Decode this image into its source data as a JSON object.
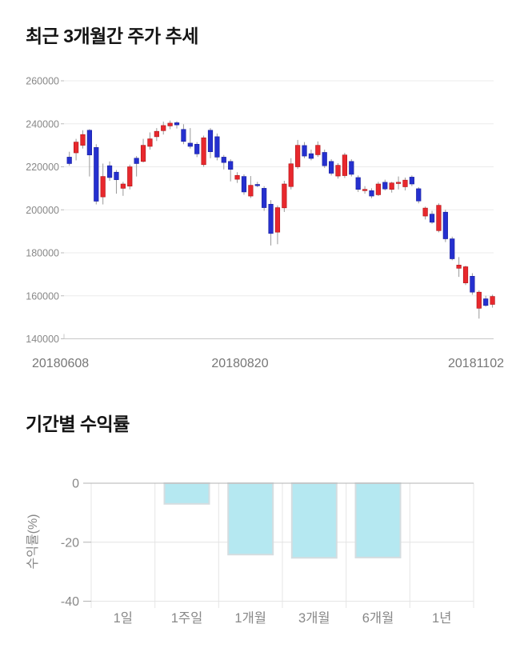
{
  "chart_data": [
    {
      "type": "candlestick",
      "title": "최근 3개월간 주가 추세",
      "x_tick_labels": [
        "20180608",
        "20180820",
        "20181102"
      ],
      "y_ticks": [
        260000,
        240000,
        220000,
        200000,
        180000,
        160000,
        140000
      ],
      "ylim": [
        140000,
        260000
      ],
      "grid": true,
      "legend": "none",
      "up_color": "#e8282d",
      "down_color": "#2530cf",
      "wick_color": "#999999",
      "grid_color": "#ebebeb",
      "axis_color": "#c8c8c8",
      "tick_label_color": "#888888",
      "candles_ohlc": [
        [
          224500,
          227000,
          220500,
          221500
        ],
        [
          226500,
          233000,
          223000,
          231500
        ],
        [
          230000,
          237000,
          228500,
          235000
        ],
        [
          237000,
          237500,
          215500,
          225500
        ],
        [
          229000,
          230500,
          202500,
          204000
        ],
        [
          206000,
          221500,
          202500,
          215500
        ],
        [
          220500,
          222500,
          213500,
          215000
        ],
        [
          217500,
          218500,
          207500,
          214000
        ],
        [
          210000,
          213000,
          206500,
          212000
        ],
        [
          211000,
          221000,
          209500,
          220000
        ],
        [
          224000,
          225000,
          215500,
          221500
        ],
        [
          222500,
          233000,
          222000,
          230000
        ],
        [
          229500,
          236000,
          228000,
          233000
        ],
        [
          234000,
          238000,
          232000,
          236500
        ],
        [
          236800,
          241000,
          235000,
          239200
        ],
        [
          239000,
          241500,
          237500,
          240300
        ],
        [
          240500,
          241200,
          237800,
          239500
        ],
        [
          237400,
          239800,
          230500,
          231800
        ],
        [
          231000,
          238000,
          228500,
          229500
        ],
        [
          230500,
          231500,
          224500,
          226000
        ],
        [
          221000,
          234500,
          220000,
          233500
        ],
        [
          237000,
          238000,
          224000,
          227000
        ],
        [
          234000,
          235500,
          223000,
          224500
        ],
        [
          224500,
          225500,
          218800,
          222000
        ],
        [
          222500,
          223500,
          213200,
          218800
        ],
        [
          214200,
          217500,
          212500,
          216000
        ],
        [
          215500,
          216500,
          207000,
          208300
        ],
        [
          206400,
          215700,
          205500,
          211400
        ],
        [
          211800,
          213000,
          210500,
          211200
        ],
        [
          210000,
          211000,
          199500,
          201000
        ],
        [
          202600,
          204500,
          183400,
          189000
        ],
        [
          189600,
          202000,
          184000,
          201000
        ],
        [
          200900,
          213500,
          199000,
          212000
        ],
        [
          210800,
          224000,
          209500,
          221400
        ],
        [
          220000,
          232500,
          219000,
          230000
        ],
        [
          229900,
          231500,
          224000,
          225000
        ],
        [
          226100,
          228000,
          223000,
          223900
        ],
        [
          225600,
          231800,
          224600,
          230000
        ],
        [
          226700,
          228000,
          219500,
          220500
        ],
        [
          222500,
          223500,
          216000,
          217000
        ],
        [
          215700,
          221700,
          214500,
          220700
        ],
        [
          215900,
          226500,
          214800,
          225500
        ],
        [
          222500,
          223500,
          215500,
          216500
        ],
        [
          215000,
          216000,
          208300,
          209500
        ],
        [
          208900,
          211000,
          207500,
          209500
        ],
        [
          208900,
          210000,
          205400,
          206400
        ],
        [
          207000,
          213000,
          206400,
          212000
        ],
        [
          212800,
          214000,
          209000,
          209700
        ],
        [
          209500,
          213000,
          208000,
          212500
        ],
        [
          212400,
          215500,
          209500,
          212800
        ],
        [
          210700,
          215000,
          209000,
          213800
        ],
        [
          215200,
          216000,
          211000,
          212000
        ],
        [
          209800,
          210500,
          203000,
          204100
        ],
        [
          197100,
          201500,
          195500,
          200800
        ],
        [
          198000,
          199500,
          193500,
          194200
        ],
        [
          190300,
          203000,
          189500,
          202100
        ],
        [
          198900,
          200000,
          185000,
          186500
        ],
        [
          186500,
          187500,
          176500,
          177200
        ],
        [
          172800,
          178000,
          168800,
          174300
        ],
        [
          166000,
          174000,
          165000,
          173500
        ],
        [
          169100,
          170500,
          160500,
          161700
        ],
        [
          154200,
          162500,
          149400,
          161700
        ],
        [
          158600,
          160000,
          155000,
          155500
        ],
        [
          156000,
          160500,
          154500,
          159700
        ]
      ]
    },
    {
      "type": "bar",
      "title": "기간별 수익률",
      "ylabel": "수익률(%)",
      "categories": [
        "1일",
        "1주일",
        "1개월",
        "3개월",
        "6개월",
        "1년"
      ],
      "values": [
        0,
        -7,
        -24.2,
        -25.3,
        -25.2,
        0
      ],
      "ylim": [
        -40,
        0
      ],
      "y_ticks": [
        0,
        -20,
        -40
      ],
      "grid": true,
      "legend": "none",
      "bar_color": "#b5e8f1",
      "bar_border_color": "#d5dde0",
      "grid_color": "#e4e4e4",
      "axis_color": "#b3b3b3",
      "tick_label_color": "#888888"
    }
  ]
}
